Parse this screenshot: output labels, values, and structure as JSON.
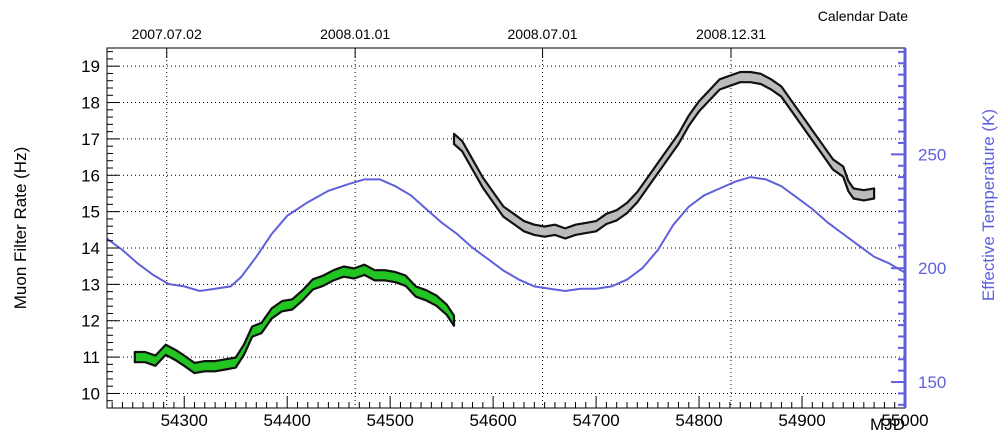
{
  "chart_data": {
    "type": "line",
    "x_axis": {
      "label": "MJD",
      "range": [
        54225,
        55000
      ],
      "ticks": [
        54300,
        54400,
        54500,
        54600,
        54700,
        54800,
        54900,
        55000
      ]
    },
    "top_axis": {
      "label": "Calendar Date",
      "ticks": [
        {
          "mjd": 54283,
          "label": "2007.07.02"
        },
        {
          "mjd": 54466,
          "label": "2008.01.01"
        },
        {
          "mjd": 54648,
          "label": "2008.07.01"
        },
        {
          "mjd": 54831,
          "label": "2008.12.31"
        }
      ]
    },
    "y_left": {
      "label": "Muon Filter Rate (Hz)",
      "range": [
        9.6,
        19.5
      ],
      "ticks": [
        10,
        11,
        12,
        13,
        14,
        15,
        16,
        17,
        18,
        19
      ]
    },
    "y_right": {
      "label": "Effective Temperature (K)",
      "range": [
        138.6,
        296.7
      ],
      "ticks": [
        150,
        200,
        250
      ],
      "color": "#6060dd"
    },
    "grid": true,
    "series": [
      {
        "axis": "left",
        "fill": "#22c422",
        "edge": "#111111",
        "points": [
          [
            54252,
            11.0
          ],
          [
            54262,
            11.0
          ],
          [
            54272,
            10.9
          ],
          [
            54282,
            11.2
          ],
          [
            54292,
            11.05
          ],
          [
            54300,
            10.9
          ],
          [
            54310,
            10.7
          ],
          [
            54320,
            10.75
          ],
          [
            54330,
            10.75
          ],
          [
            54340,
            10.8
          ],
          [
            54350,
            10.85
          ],
          [
            54358,
            11.2
          ],
          [
            54366,
            11.7
          ],
          [
            54375,
            11.8
          ],
          [
            54385,
            12.2
          ],
          [
            54395,
            12.4
          ],
          [
            54405,
            12.45
          ],
          [
            54415,
            12.7
          ],
          [
            54425,
            13.0
          ],
          [
            54435,
            13.1
          ],
          [
            54445,
            13.25
          ],
          [
            54455,
            13.35
          ],
          [
            54465,
            13.3
          ],
          [
            54475,
            13.4
          ],
          [
            54485,
            13.25
          ],
          [
            54495,
            13.25
          ],
          [
            54505,
            13.2
          ],
          [
            54515,
            13.1
          ],
          [
            54525,
            12.8
          ],
          [
            54535,
            12.7
          ],
          [
            54545,
            12.55
          ],
          [
            54555,
            12.3
          ],
          [
            54562,
            12.0
          ]
        ]
      },
      {
        "axis": "left",
        "fill": "#bbbbbb",
        "edge": "#111111",
        "points": [
          [
            54562,
            17.0
          ],
          [
            54570,
            16.8
          ],
          [
            54580,
            16.3
          ],
          [
            54590,
            15.8
          ],
          [
            54600,
            15.4
          ],
          [
            54610,
            15.0
          ],
          [
            54620,
            14.8
          ],
          [
            54630,
            14.6
          ],
          [
            54640,
            14.5
          ],
          [
            54650,
            14.45
          ],
          [
            54660,
            14.5
          ],
          [
            54670,
            14.4
          ],
          [
            54680,
            14.5
          ],
          [
            54690,
            14.55
          ],
          [
            54700,
            14.6
          ],
          [
            54710,
            14.8
          ],
          [
            54720,
            14.9
          ],
          [
            54730,
            15.1
          ],
          [
            54740,
            15.4
          ],
          [
            54750,
            15.8
          ],
          [
            54760,
            16.2
          ],
          [
            54770,
            16.6
          ],
          [
            54780,
            17.0
          ],
          [
            54790,
            17.5
          ],
          [
            54800,
            17.9
          ],
          [
            54810,
            18.2
          ],
          [
            54820,
            18.5
          ],
          [
            54830,
            18.6
          ],
          [
            54840,
            18.7
          ],
          [
            54850,
            18.7
          ],
          [
            54860,
            18.65
          ],
          [
            54870,
            18.5
          ],
          [
            54880,
            18.3
          ],
          [
            54890,
            17.9
          ],
          [
            54900,
            17.5
          ],
          [
            54910,
            17.1
          ],
          [
            54920,
            16.7
          ],
          [
            54930,
            16.3
          ],
          [
            54940,
            16.1
          ],
          [
            54945,
            15.7
          ],
          [
            54950,
            15.5
          ],
          [
            54960,
            15.45
          ],
          [
            54970,
            15.5
          ]
        ]
      },
      {
        "axis": "right",
        "color": "#6060dd",
        "points": [
          [
            54225,
            213
          ],
          [
            54240,
            208
          ],
          [
            54255,
            202
          ],
          [
            54270,
            197
          ],
          [
            54285,
            193
          ],
          [
            54300,
            192
          ],
          [
            54315,
            190
          ],
          [
            54330,
            191
          ],
          [
            54345,
            192
          ],
          [
            54355,
            196
          ],
          [
            54370,
            205
          ],
          [
            54385,
            215
          ],
          [
            54400,
            223
          ],
          [
            54420,
            229
          ],
          [
            54440,
            234
          ],
          [
            54460,
            237
          ],
          [
            54475,
            239
          ],
          [
            54490,
            239
          ],
          [
            54505,
            236
          ],
          [
            54520,
            232
          ],
          [
            54535,
            226
          ],
          [
            54550,
            220
          ],
          [
            54565,
            215
          ],
          [
            54580,
            209
          ],
          [
            54595,
            204
          ],
          [
            54610,
            199
          ],
          [
            54625,
            195
          ],
          [
            54640,
            192
          ],
          [
            54655,
            191
          ],
          [
            54670,
            190
          ],
          [
            54685,
            191
          ],
          [
            54700,
            191
          ],
          [
            54715,
            192
          ],
          [
            54730,
            195
          ],
          [
            54745,
            200
          ],
          [
            54760,
            208
          ],
          [
            54775,
            219
          ],
          [
            54790,
            227
          ],
          [
            54805,
            232
          ],
          [
            54820,
            235
          ],
          [
            54835,
            238
          ],
          [
            54850,
            240
          ],
          [
            54865,
            239
          ],
          [
            54880,
            236
          ],
          [
            54895,
            231
          ],
          [
            54910,
            226
          ],
          [
            54925,
            220
          ],
          [
            54940,
            215
          ],
          [
            54955,
            210
          ],
          [
            54970,
            205
          ],
          [
            54985,
            202
          ],
          [
            55000,
            198
          ]
        ]
      }
    ]
  }
}
